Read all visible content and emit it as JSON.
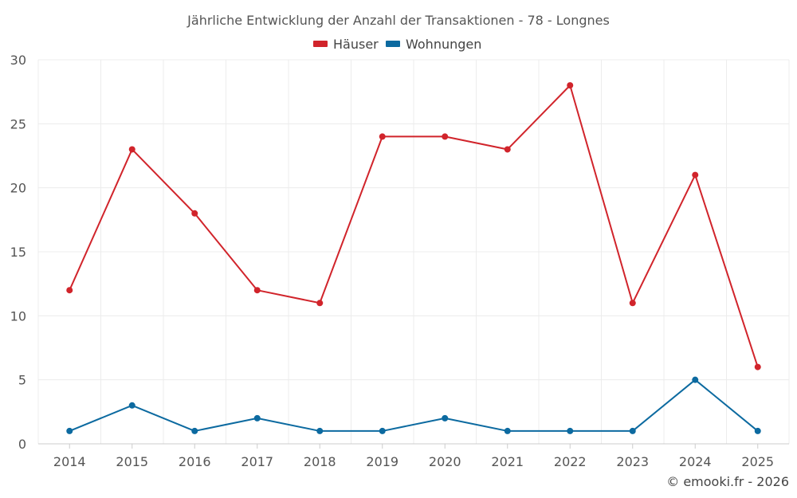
{
  "chart_data": {
    "type": "line",
    "title": "Jährliche Entwicklung der Anzahl der Transaktionen - 78 - Longnes",
    "categories": [
      "2014",
      "2015",
      "2016",
      "2017",
      "2018",
      "2019",
      "2020",
      "2021",
      "2022",
      "2023",
      "2024",
      "2025"
    ],
    "series": [
      {
        "name": "Häuser",
        "color": "#d1242b",
        "values": [
          12,
          23,
          18,
          12,
          11,
          24,
          24,
          23,
          28,
          11,
          21,
          6
        ]
      },
      {
        "name": "Wohnungen",
        "color": "#0c6aa0",
        "values": [
          1,
          3,
          1,
          2,
          1,
          1,
          2,
          1,
          1,
          1,
          5,
          1
        ]
      }
    ],
    "ylim": [
      0,
      30
    ],
    "yticks": [
      0,
      5,
      10,
      15,
      20,
      25,
      30
    ],
    "grid": true,
    "legend": "top-center",
    "credit": "© emooki.fr - 2026"
  }
}
